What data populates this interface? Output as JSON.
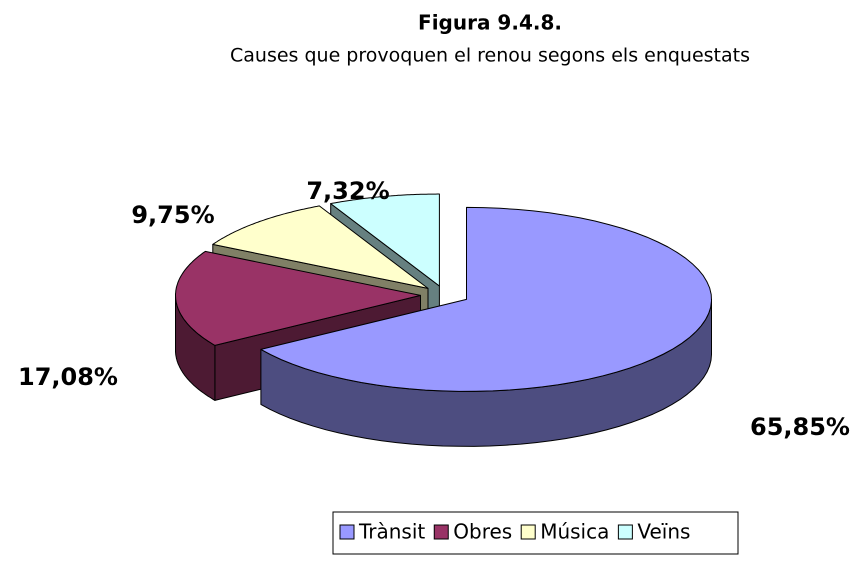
{
  "chart_data": {
    "type": "pie3d",
    "title": "Figura 9.4.8.",
    "subtitle": "Causes que provoquen el renou segons els enquestats",
    "categories": [
      "Trànsit",
      "Obres",
      "Música",
      "Veïns"
    ],
    "values": [
      65.85,
      17.08,
      9.75,
      7.32
    ],
    "value_labels": [
      "65,85%",
      "17,08%",
      "9,75%",
      "7,32%"
    ],
    "colors": [
      "#9999ff",
      "#993366",
      "#ffffcc",
      "#ccffff"
    ],
    "legend": "bottom"
  }
}
